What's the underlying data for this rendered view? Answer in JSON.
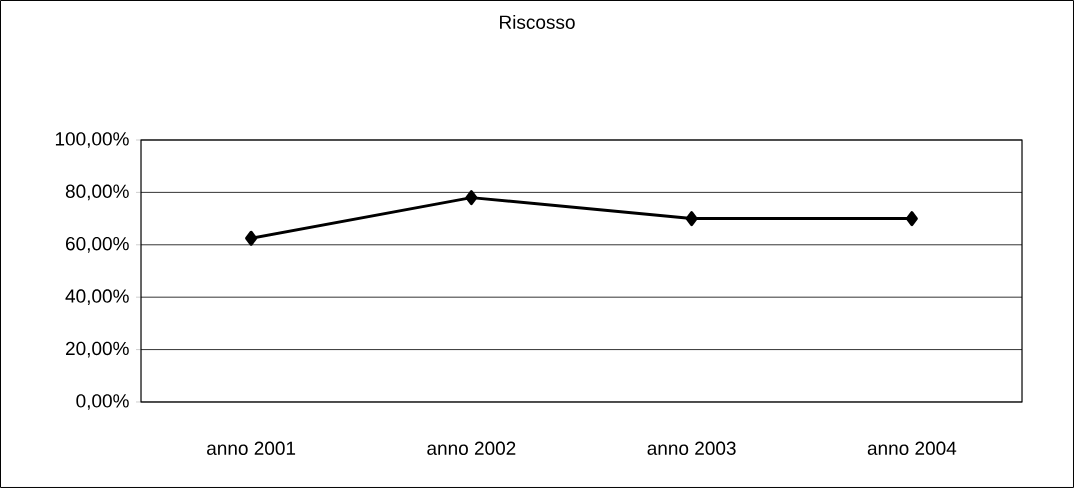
{
  "chart_data": {
    "type": "line",
    "title": "Riscosso",
    "categories": [
      "anno 2001",
      "anno 2002",
      "anno 2003",
      "anno 2004"
    ],
    "values": [
      62.5,
      78,
      70,
      70
    ],
    "color": "#000000",
    "marker": "diamond",
    "line_style": "solid",
    "ylim": [
      0,
      100
    ],
    "yticks": [
      {
        "value": 0,
        "label": "0,00%"
      },
      {
        "value": 20,
        "label": "20,00%"
      },
      {
        "value": 40,
        "label": "40,00%"
      },
      {
        "value": 60,
        "label": "60,00%"
      },
      {
        "value": 80,
        "label": "80,00%"
      },
      {
        "value": 100,
        "label": "100,00%"
      }
    ],
    "grid": "y"
  }
}
